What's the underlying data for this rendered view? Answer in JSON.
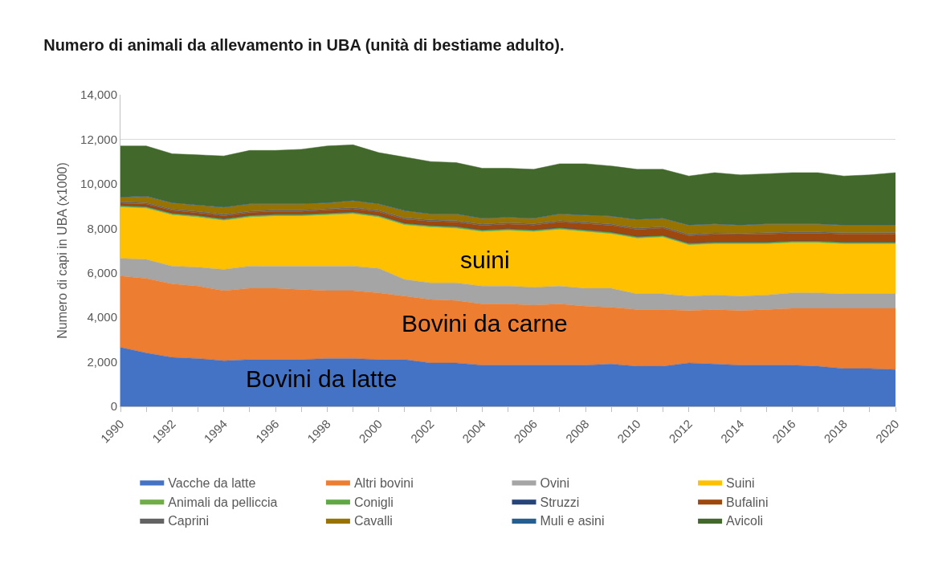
{
  "chart_data": {
    "type": "area",
    "stacked": true,
    "title": "Numero di animali da allevamento in UBA (unità di bestiame adulto).",
    "ylabel": "Numero di capi in UBA (x1000)",
    "x": [
      1990,
      1991,
      1992,
      1993,
      1994,
      1995,
      1996,
      1997,
      1998,
      1999,
      2000,
      2001,
      2002,
      2003,
      2004,
      2005,
      2006,
      2007,
      2008,
      2009,
      2010,
      2011,
      2012,
      2013,
      2014,
      2015,
      2016,
      2017,
      2018,
      2019,
      2020
    ],
    "xlim": [
      1990,
      2020
    ],
    "xticks": [
      1990,
      {
        "value": 1991,
        "label": null
      },
      1992,
      {
        "value": 1993,
        "label": null
      },
      1994,
      {
        "value": 1995,
        "label": null
      },
      1996,
      {
        "value": 1997,
        "label": null
      },
      1998,
      {
        "value": 1999,
        "label": null
      },
      2000,
      {
        "value": 2001,
        "label": null
      },
      2002,
      {
        "value": 2003,
        "label": null
      },
      2004,
      {
        "value": 2005,
        "label": null
      },
      2006,
      {
        "value": 2007,
        "label": null
      },
      2008,
      {
        "value": 2009,
        "label": null
      },
      2010,
      {
        "value": 2011,
        "label": null
      },
      2012,
      {
        "value": 2013,
        "label": null
      },
      2014,
      {
        "value": 2015,
        "label": null
      },
      2016,
      {
        "value": 2017,
        "label": null
      },
      2018,
      {
        "value": 2019,
        "label": null
      },
      2020
    ],
    "ylim": [
      0,
      14000
    ],
    "yticks": [
      {
        "value": 0,
        "label": "0"
      },
      {
        "value": 2000,
        "label": "2,000"
      },
      {
        "value": 4000,
        "label": "4,000"
      },
      {
        "value": 6000,
        "label": "6,000"
      },
      {
        "value": 8000,
        "label": "8,000"
      },
      {
        "value": 10000,
        "label": "10,000"
      },
      {
        "value": 12000,
        "label": "12,000"
      },
      {
        "value": 14000,
        "label": "14,000"
      }
    ],
    "grid": "y",
    "legend": "bottom",
    "series": [
      {
        "name": "Vacche da latte",
        "color": "#4472c4",
        "values": [
          2650,
          2400,
          2200,
          2150,
          2050,
          2100,
          2100,
          2100,
          2150,
          2150,
          2100,
          2100,
          1950,
          1950,
          1850,
          1850,
          1850,
          1850,
          1850,
          1900,
          1800,
          1800,
          1950,
          1900,
          1850,
          1850,
          1850,
          1800,
          1700,
          1700,
          1650
        ]
      },
      {
        "name": "Altri bovini",
        "color": "#ed7d31",
        "values": [
          3200,
          3350,
          3300,
          3250,
          3150,
          3200,
          3200,
          3150,
          3050,
          3050,
          3000,
          2850,
          2850,
          2800,
          2750,
          2750,
          2700,
          2750,
          2650,
          2550,
          2550,
          2550,
          2350,
          2450,
          2450,
          2500,
          2550,
          2600,
          2700,
          2700,
          2750
        ]
      },
      {
        "name": "Ovini",
        "color": "#a5a5a5",
        "values": [
          800,
          850,
          800,
          850,
          950,
          1000,
          1000,
          1050,
          1100,
          1100,
          1100,
          750,
          750,
          800,
          800,
          800,
          800,
          800,
          800,
          850,
          700,
          700,
          650,
          650,
          650,
          650,
          700,
          700,
          650,
          650,
          650
        ]
      },
      {
        "name": "Suini",
        "color": "#ffc000",
        "values": [
          2300,
          2300,
          2300,
          2250,
          2200,
          2200,
          2250,
          2250,
          2300,
          2350,
          2300,
          2450,
          2500,
          2450,
          2450,
          2500,
          2500,
          2550,
          2550,
          2450,
          2500,
          2550,
          2300,
          2300,
          2350,
          2300,
          2250,
          2250,
          2250,
          2250,
          2250
        ]
      },
      {
        "name": "Animali da pelliccia",
        "color": "#70ad47",
        "values": [
          20,
          20,
          20,
          20,
          20,
          20,
          20,
          20,
          20,
          20,
          20,
          20,
          20,
          20,
          20,
          20,
          20,
          20,
          20,
          20,
          20,
          20,
          20,
          20,
          20,
          20,
          20,
          20,
          20,
          20,
          20
        ]
      },
      {
        "name": "Conigli",
        "color": "#5fa843",
        "values": [
          50,
          50,
          50,
          50,
          50,
          50,
          50,
          50,
          50,
          50,
          50,
          50,
          50,
          50,
          50,
          50,
          50,
          50,
          50,
          50,
          50,
          50,
          50,
          50,
          50,
          50,
          50,
          50,
          50,
          50,
          50
        ]
      },
      {
        "name": "Struzzi",
        "color": "#264478",
        "values": [
          10,
          10,
          10,
          10,
          10,
          10,
          10,
          10,
          10,
          10,
          10,
          10,
          10,
          10,
          10,
          10,
          10,
          10,
          10,
          10,
          10,
          10,
          10,
          10,
          10,
          10,
          10,
          10,
          10,
          10,
          10
        ]
      },
      {
        "name": "Bufalini",
        "color": "#9e480e",
        "values": [
          100,
          110,
          120,
          120,
          130,
          130,
          130,
          130,
          140,
          150,
          160,
          180,
          190,
          200,
          200,
          210,
          220,
          250,
          280,
          300,
          320,
          330,
          340,
          350,
          340,
          360,
          350,
          350,
          360,
          360,
          370
        ]
      },
      {
        "name": "Caprini",
        "color": "#636363",
        "values": [
          60,
          60,
          60,
          60,
          60,
          60,
          60,
          60,
          60,
          60,
          60,
          60,
          60,
          60,
          60,
          60,
          60,
          60,
          60,
          60,
          60,
          60,
          60,
          60,
          60,
          60,
          60,
          60,
          60,
          60,
          60
        ]
      },
      {
        "name": "Cavalli",
        "color": "#997300",
        "values": [
          190,
          280,
          270,
          270,
          310,
          310,
          260,
          260,
          250,
          290,
          280,
          310,
          250,
          290,
          240,
          230,
          220,
          290,
          310,
          340,
          370,
          360,
          400,
          390,
          350,
          380,
          340,
          340,
          330,
          330,
          320
        ]
      },
      {
        "name": "Muli e asini",
        "color": "#255e91",
        "values": [
          20,
          20,
          20,
          20,
          20,
          20,
          20,
          20,
          20,
          20,
          20,
          20,
          20,
          20,
          20,
          20,
          20,
          20,
          20,
          20,
          20,
          20,
          20,
          20,
          20,
          20,
          20,
          20,
          20,
          20,
          20
        ]
      },
      {
        "name": "Avicoli",
        "color": "#43682b",
        "values": [
          2300,
          2250,
          2200,
          2250,
          2300,
          2400,
          2400,
          2450,
          2550,
          2500,
          2300,
          2400,
          2350,
          2300,
          2250,
          2200,
          2200,
          2250,
          2300,
          2250,
          2250,
          2200,
          2200,
          2300,
          2250,
          2250,
          2300,
          2300,
          2200,
          2250,
          2350
        ]
      }
    ],
    "annotations": [
      "suini",
      "Bovini da carne",
      "Bovini da latte"
    ]
  }
}
